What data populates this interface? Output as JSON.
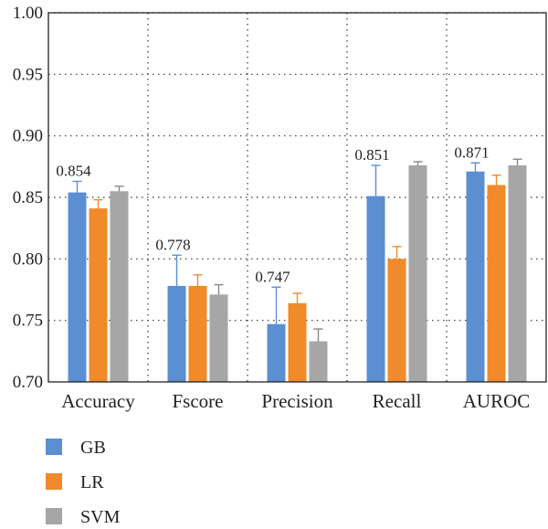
{
  "chart_data": {
    "type": "bar",
    "categories": [
      "Accuracy",
      "Fscore",
      "Precision",
      "Recall",
      "AUROC"
    ],
    "series": [
      {
        "name": "GB",
        "color": "#5b8fd2",
        "values": [
          0.854,
          0.778,
          0.747,
          0.851,
          0.871
        ],
        "errors": [
          0.009,
          0.025,
          0.03,
          0.025,
          0.007
        ]
      },
      {
        "name": "LR",
        "color": "#f08a2a",
        "values": [
          0.841,
          0.778,
          0.764,
          0.8,
          0.86
        ],
        "errors": [
          0.007,
          0.009,
          0.008,
          0.01,
          0.008
        ]
      },
      {
        "name": "SVM",
        "color": "#a6a6a6",
        "values": [
          0.855,
          0.771,
          0.733,
          0.876,
          0.876
        ],
        "errors": [
          0.004,
          0.008,
          0.01,
          0.003,
          0.005
        ]
      }
    ],
    "data_labels": [
      "0.854",
      "0.778",
      "0.747",
      "0.851",
      "0.871"
    ],
    "ylim": [
      0.7,
      1.0
    ],
    "yticks": [
      "0.70",
      "0.75",
      "0.80",
      "0.85",
      "0.90",
      "0.95",
      "1.00"
    ],
    "grid": "dotted",
    "legend_position": "bottom-left",
    "title": "",
    "xlabel": "",
    "ylabel": ""
  }
}
